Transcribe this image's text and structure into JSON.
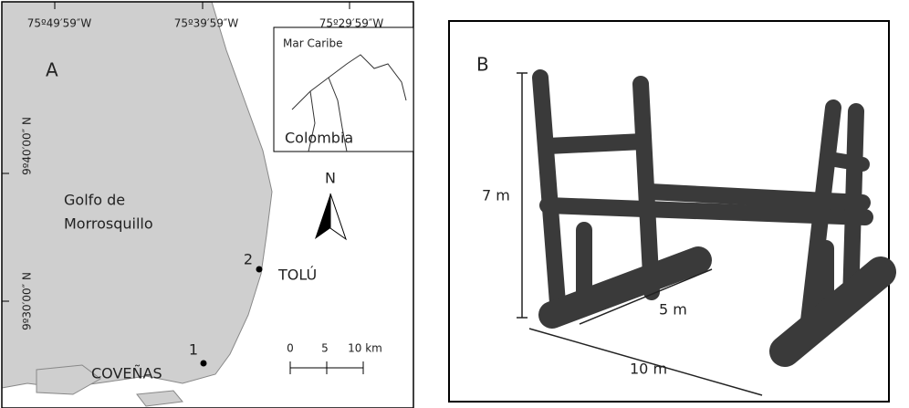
{
  "panel_a": {
    "label": "A",
    "lon_labels": [
      "75º49′59″W",
      "75º39′59″W",
      "75º29′59″W"
    ],
    "lat_labels": [
      "9º40′00″ N",
      "9º30′00″ N"
    ],
    "inset": {
      "sea": "Mar Caribe",
      "country": "Colombia"
    },
    "gulf": [
      "Golfo de",
      "Morrosquillo"
    ],
    "north": "N",
    "sites": [
      {
        "number": "1",
        "name": "COVEÑAS"
      },
      {
        "number": "2",
        "name": "TOLÚ"
      }
    ],
    "scale": [
      "0",
      "5",
      "10 km"
    ]
  },
  "panel_b": {
    "label": "B",
    "dimensions": [
      "7 m",
      "5 m",
      "10 m"
    ]
  }
}
